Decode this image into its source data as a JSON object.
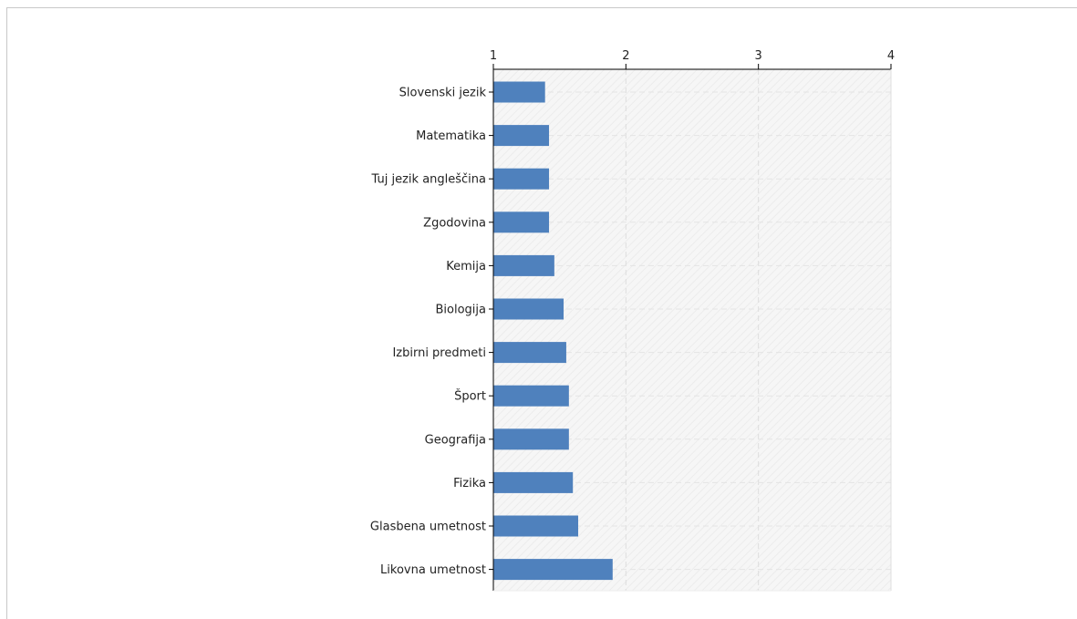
{
  "chart_data": {
    "type": "bar",
    "orientation": "horizontal",
    "title": "",
    "xlabel": "",
    "ylabel": "",
    "xlim": [
      1,
      4
    ],
    "xticks": [
      "1",
      "2",
      "3",
      "4"
    ],
    "grid": true,
    "categories": [
      "Slovenski jezik",
      "Matematika",
      "Tuj jezik angleščina",
      "Zgodovina",
      "Kemija",
      "Biologija",
      "Izbirni predmeti",
      "Šport",
      "Geografija",
      "Fizika",
      "Glasbena umetnost",
      "Likovna umetnost"
    ],
    "values": [
      1.39,
      1.42,
      1.42,
      1.42,
      1.46,
      1.53,
      1.55,
      1.57,
      1.57,
      1.6,
      1.64,
      1.9
    ],
    "colors": {
      "bar": "#4f81bd",
      "axis": "#000000",
      "grid": "#dddddd",
      "plot_bg": "#f4f4f4"
    }
  }
}
